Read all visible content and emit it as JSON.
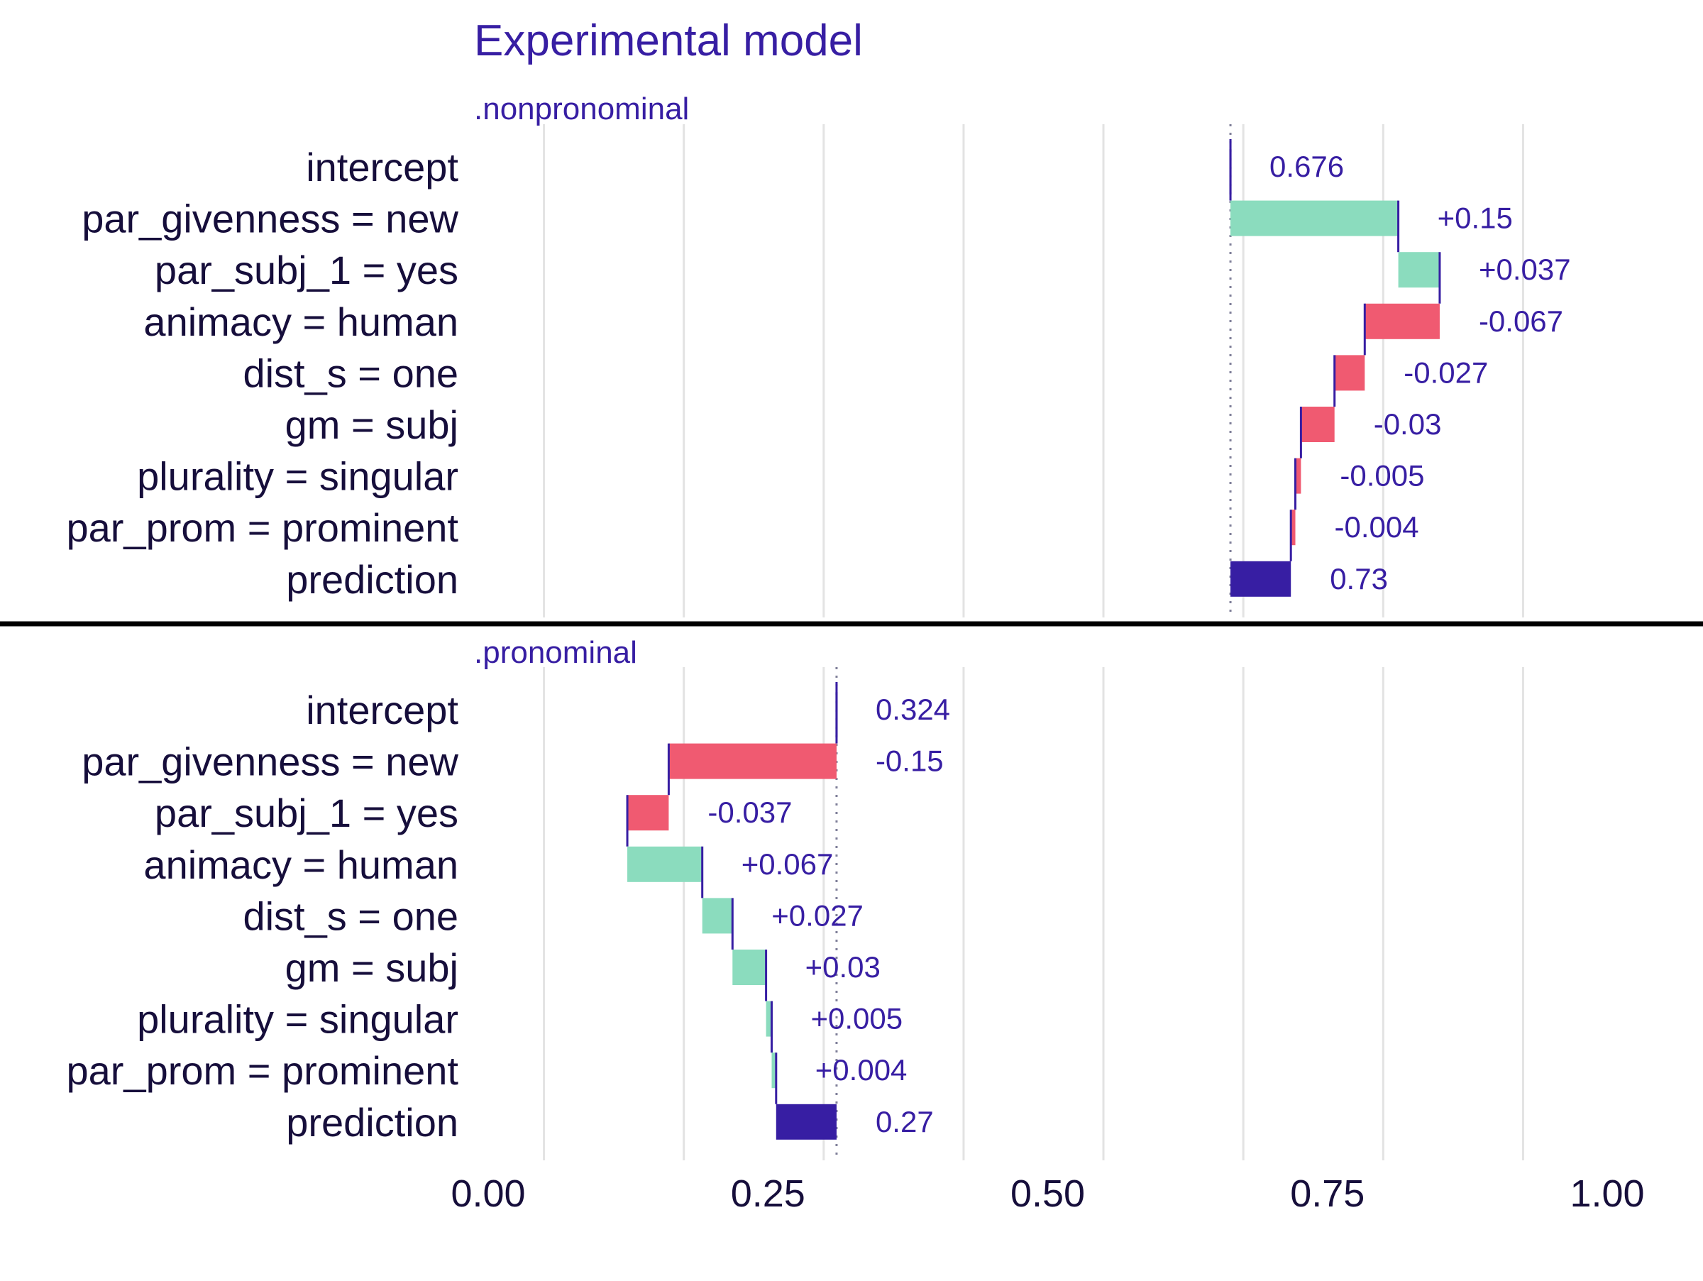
{
  "chart_data": {
    "type": "bar",
    "subtype": "break-down waterfall",
    "title": "Experimental model",
    "xlim": [
      0,
      1
    ],
    "x_ticks": [
      "0.00",
      "0.25",
      "0.50",
      "0.75",
      "1.00"
    ],
    "grid": true,
    "colors": {
      "positive": "#8bdcbe",
      "negative": "#f05a71",
      "prediction": "#371ea3",
      "text": "#371ea3",
      "axis_text": "#160e3b"
    },
    "panels": [
      {
        "name": ".nonpronominal",
        "baseline": 0.676,
        "rows": [
          {
            "variable": "intercept",
            "contribution": 0.676,
            "label": "0.676",
            "kind": "intercept"
          },
          {
            "variable": "par_givenness = new",
            "contribution": 0.15,
            "label": "+0.15",
            "kind": "positive"
          },
          {
            "variable": "par_subj_1 = yes",
            "contribution": 0.037,
            "label": "+0.037",
            "kind": "positive"
          },
          {
            "variable": "animacy = human",
            "contribution": -0.067,
            "label": "-0.067",
            "kind": "negative"
          },
          {
            "variable": "dist_s = one",
            "contribution": -0.027,
            "label": "-0.027",
            "kind": "negative"
          },
          {
            "variable": "gm = subj",
            "contribution": -0.03,
            "label": "-0.03",
            "kind": "negative"
          },
          {
            "variable": "plurality = singular",
            "contribution": -0.005,
            "label": "-0.005",
            "kind": "negative"
          },
          {
            "variable": "par_prom = prominent",
            "contribution": -0.004,
            "label": "-0.004",
            "kind": "negative"
          },
          {
            "variable": "prediction",
            "contribution": 0.73,
            "label": "0.73",
            "kind": "prediction"
          }
        ]
      },
      {
        "name": ".pronominal",
        "baseline": 0.324,
        "rows": [
          {
            "variable": "intercept",
            "contribution": 0.324,
            "label": "0.324",
            "kind": "intercept"
          },
          {
            "variable": "par_givenness = new",
            "contribution": -0.15,
            "label": "-0.15",
            "kind": "negative"
          },
          {
            "variable": "par_subj_1 = yes",
            "contribution": -0.037,
            "label": "-0.037",
            "kind": "negative"
          },
          {
            "variable": "animacy = human",
            "contribution": 0.067,
            "label": "+0.067",
            "kind": "positive"
          },
          {
            "variable": "dist_s = one",
            "contribution": 0.027,
            "label": "+0.027",
            "kind": "positive"
          },
          {
            "variable": "gm = subj",
            "contribution": 0.03,
            "label": "+0.03",
            "kind": "positive"
          },
          {
            "variable": "plurality = singular",
            "contribution": 0.005,
            "label": "+0.005",
            "kind": "positive"
          },
          {
            "variable": "par_prom = prominent",
            "contribution": 0.004,
            "label": "+0.004",
            "kind": "positive"
          },
          {
            "variable": "prediction",
            "contribution": 0.27,
            "label": "0.27",
            "kind": "prediction"
          }
        ]
      }
    ]
  }
}
